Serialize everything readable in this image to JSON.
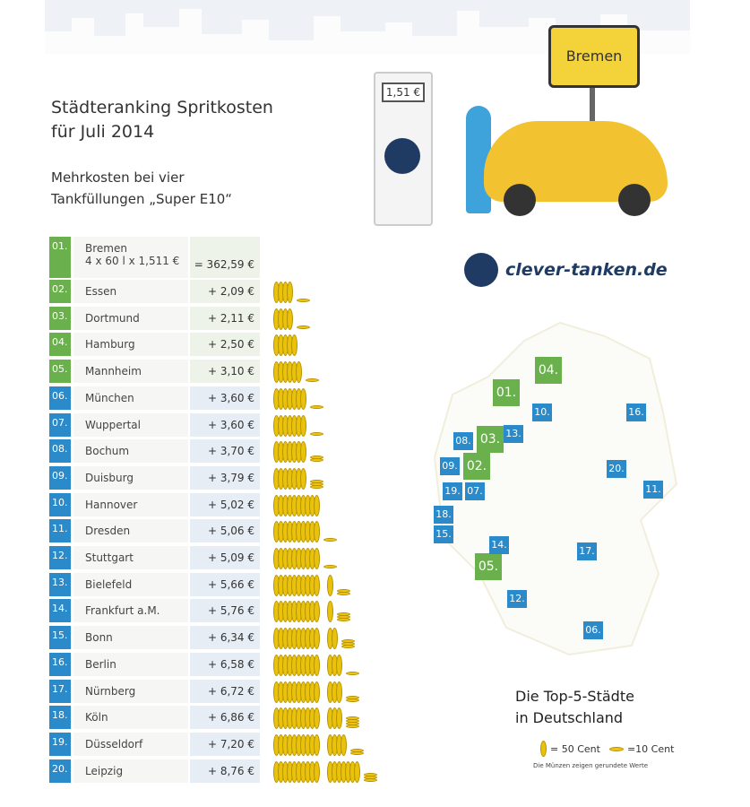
{
  "title": [
    "Städteranking Spritkosten",
    "für Juli 2014"
  ],
  "subtitle": [
    "Mehrkosten bei vier",
    "Tankfüllungen „Super E10“"
  ],
  "illustration": {
    "pump_price": "1,51 €",
    "sign": "Bremen",
    "brand": "clever-tanken.de"
  },
  "colors": {
    "top5": "#6ab04c",
    "rest": "#2b8ac9",
    "coin": "#e8c20c"
  },
  "ranking": [
    {
      "rank": "01.",
      "city": "Bremen",
      "detail": "4 x 60 l x 1,511 €",
      "value": "= 362,59  €"
    },
    {
      "rank": "02.",
      "city": "Essen",
      "value": "+ 2,09  €",
      "amount": 2.09
    },
    {
      "rank": "03.",
      "city": "Dortmund",
      "value": "+ 2,11  €",
      "amount": 2.11
    },
    {
      "rank": "04.",
      "city": "Hamburg",
      "value": "+ 2,50  €",
      "amount": 2.5
    },
    {
      "rank": "05.",
      "city": "Mannheim",
      "value": "+ 3,10  €",
      "amount": 3.1
    },
    {
      "rank": "06.",
      "city": "München",
      "value": "+ 3,60  €",
      "amount": 3.6
    },
    {
      "rank": "07.",
      "city": "Wuppertal",
      "value": "+ 3,60  €",
      "amount": 3.6
    },
    {
      "rank": "08.",
      "city": "Bochum",
      "value": "+ 3,70  €",
      "amount": 3.7
    },
    {
      "rank": "09.",
      "city": "Duisburg",
      "value": "+ 3,79  €",
      "amount": 3.79
    },
    {
      "rank": "10.",
      "city": "Hannover",
      "value": "+ 5,02  €",
      "amount": 5.02
    },
    {
      "rank": "11.",
      "city": "Dresden",
      "value": "+ 5,06  €",
      "amount": 5.06
    },
    {
      "rank": "12.",
      "city": "Stuttgart",
      "value": "+ 5,09  €",
      "amount": 5.09
    },
    {
      "rank": "13.",
      "city": "Bielefeld",
      "value": "+ 5,66  €",
      "amount": 5.66
    },
    {
      "rank": "14.",
      "city": "Frankfurt a.M.",
      "value": "+ 5,76  €",
      "amount": 5.76
    },
    {
      "rank": "15.",
      "city": "Bonn",
      "value": "+ 6,34  €",
      "amount": 6.34
    },
    {
      "rank": "16.",
      "city": "Berlin",
      "value": "+ 6,58  €",
      "amount": 6.58
    },
    {
      "rank": "17.",
      "city": "Nürnberg",
      "value": "+ 6,72  €",
      "amount": 6.72
    },
    {
      "rank": "18.",
      "city": "Köln",
      "value": "+ 6,86  €",
      "amount": 6.86
    },
    {
      "rank": "19.",
      "city": "Düsseldorf",
      "value": "+ 7,20  €",
      "amount": 7.2
    },
    {
      "rank": "20.",
      "city": "Leipzig",
      "value": "+ 8,76  €",
      "amount": 8.76
    }
  ],
  "map_title": [
    "Die Top-5-Städte",
    "in Deutschland"
  ],
  "legend": {
    "big": "= 50 Cent",
    "small": "=10 Cent",
    "note": "Die Münzen zeigen gerundete Werte"
  }
}
